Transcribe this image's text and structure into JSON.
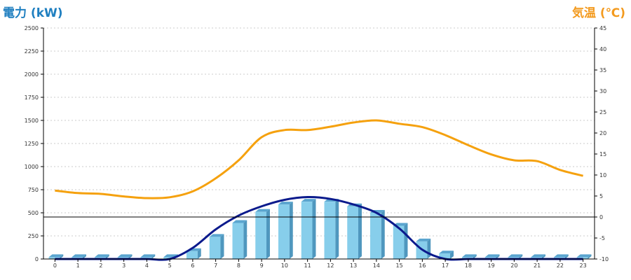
{
  "chart_data": {
    "type": "bar+line",
    "x": [
      "0",
      "1",
      "2",
      "3",
      "4",
      "5",
      "6",
      "7",
      "8",
      "9",
      "10",
      "11",
      "12",
      "13",
      "14",
      "15",
      "16",
      "17",
      "18",
      "19",
      "20",
      "21",
      "22",
      "23"
    ],
    "left_axis": {
      "label": "電力 (kW)",
      "ylim": [
        0,
        2500
      ],
      "ticks": [
        "0",
        "250",
        "500",
        "750",
        "1000",
        "1250",
        "1500",
        "1750",
        "2000",
        "2250",
        "2500"
      ]
    },
    "right_axis": {
      "label": "気温 (℃)",
      "ylim": [
        -10,
        45
      ],
      "ticks": [
        "-10",
        "-5",
        "0",
        "5",
        "10",
        "15",
        "20",
        "25",
        "30",
        "35",
        "40",
        "45"
      ]
    },
    "series": [
      {
        "type": "bar",
        "axis": "left",
        "values": [
          20,
          20,
          20,
          20,
          20,
          20,
          85,
          240,
          390,
          510,
          590,
          620,
          620,
          570,
          500,
          360,
          190,
          60,
          20,
          20,
          20,
          20,
          20,
          20
        ]
      },
      {
        "type": "line",
        "axis": "left",
        "values": [
          0,
          0,
          0,
          0,
          0,
          0,
          120,
          320,
          470,
          570,
          640,
          670,
          650,
          590,
          500,
          330,
          100,
          0,
          0,
          0,
          0,
          0,
          0,
          0
        ]
      },
      {
        "type": "line",
        "axis": "right",
        "values": [
          6.3,
          5.7,
          5.5,
          4.9,
          4.5,
          4.7,
          6.1,
          9.2,
          13.5,
          19.0,
          20.7,
          20.7,
          21.5,
          22.5,
          23.0,
          22.2,
          21.4,
          19.5,
          17.1,
          14.9,
          13.5,
          13.3,
          11.2,
          9.8
        ]
      }
    ],
    "colors": {
      "bar": "#87ceeb",
      "bar_side": "#4f97be",
      "bar_top": "#5aa5cf",
      "power_line": "#0b1a8c",
      "temp_line": "#f5a10e",
      "left_title": "#1f7fc0",
      "right_title": "#f39a1e"
    },
    "grid": true
  }
}
